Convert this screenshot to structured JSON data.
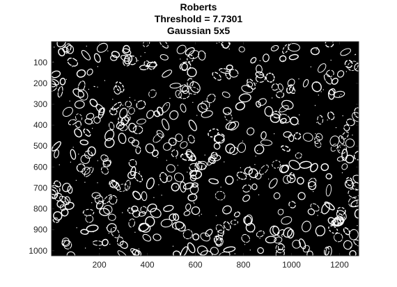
{
  "figure": {
    "title_lines": [
      "Roberts",
      "Threshold = 7.7301",
      "Gaussian 5x5"
    ]
  },
  "chart_data": {
    "type": "image",
    "description_kind": "binary edge map",
    "colors": {
      "background": "#000000",
      "edges": "#ffffff"
    },
    "xlim": [
      1,
      1280
    ],
    "ylim": [
      1,
      1024
    ],
    "y_direction": "reverse",
    "xticks": [
      200,
      400,
      600,
      800,
      1000,
      1200
    ],
    "yticks": [
      100,
      200,
      300,
      400,
      500,
      600,
      700,
      800,
      900,
      1000
    ],
    "xtick_labels": [
      "200",
      "400",
      "600",
      "800",
      "1000",
      "1200"
    ],
    "ytick_labels": [
      "100",
      "200",
      "300",
      "400",
      "500",
      "600",
      "700",
      "800",
      "900",
      "1000"
    ]
  }
}
